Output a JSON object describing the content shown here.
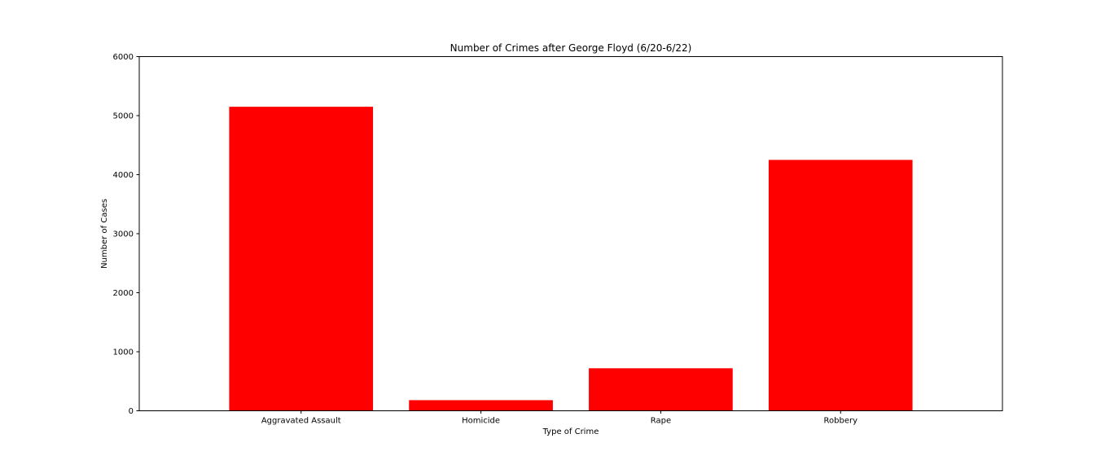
{
  "chart_data": {
    "type": "bar",
    "title": "Number of Crimes after George Floyd (6/20-6/22)",
    "xlabel": "Type of Crime",
    "ylabel": "Number of Cases",
    "categories": [
      "Aggravated Assault",
      "Homicide",
      "Rape",
      "Robbery"
    ],
    "values": [
      5150,
      180,
      720,
      4250
    ],
    "ylim": [
      0,
      6000
    ],
    "yticks": [
      0,
      1000,
      2000,
      3000,
      4000,
      5000,
      6000
    ],
    "bar_color": "#ff0000",
    "grid": false,
    "legend": false
  }
}
